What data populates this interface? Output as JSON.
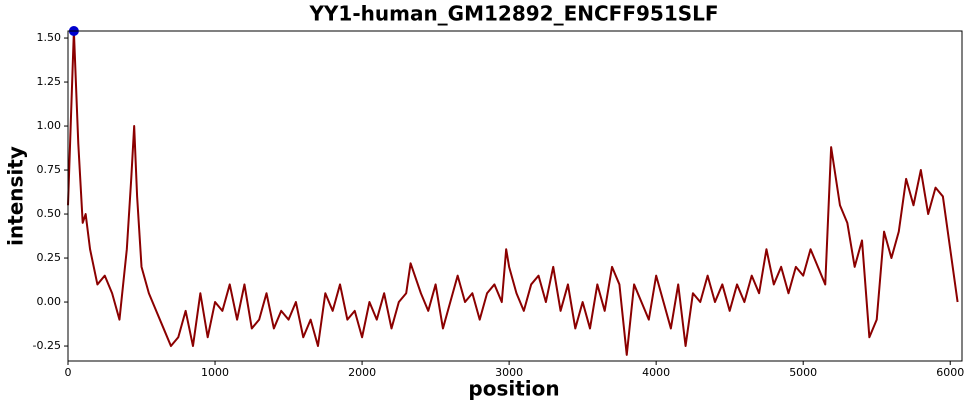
{
  "chart_data": {
    "type": "line",
    "title": "YY1-human_GM12892_ENCFF951SLF",
    "x_label": "position",
    "y_label": "intensity",
    "x": [
      0,
      40,
      70,
      100,
      120,
      150,
      200,
      250,
      300,
      350,
      400,
      430,
      450,
      470,
      500,
      550,
      600,
      650,
      700,
      750,
      800,
      850,
      900,
      950,
      1000,
      1050,
      1100,
      1150,
      1200,
      1250,
      1300,
      1350,
      1400,
      1450,
      1500,
      1550,
      1600,
      1650,
      1700,
      1750,
      1800,
      1850,
      1900,
      1950,
      2000,
      2050,
      2100,
      2150,
      2200,
      2250,
      2300,
      2330,
      2400,
      2450,
      2500,
      2550,
      2600,
      2650,
      2700,
      2750,
      2800,
      2850,
      2900,
      2950,
      2980,
      3000,
      3050,
      3100,
      3150,
      3200,
      3250,
      3300,
      3350,
      3400,
      3450,
      3500,
      3550,
      3600,
      3650,
      3700,
      3750,
      3800,
      3850,
      3900,
      3950,
      4000,
      4050,
      4100,
      4150,
      4200,
      4250,
      4300,
      4350,
      4400,
      4450,
      4500,
      4550,
      4600,
      4650,
      4700,
      4750,
      4800,
      4850,
      4900,
      4950,
      5000,
      5050,
      5100,
      5150,
      5190,
      5250,
      5300,
      5350,
      5400,
      5450,
      5500,
      5550,
      5600,
      5650,
      5700,
      5750,
      5800,
      5850,
      5900,
      5950,
      6000,
      6050
    ],
    "values": [
      0.55,
      1.54,
      0.9,
      0.45,
      0.5,
      0.3,
      0.1,
      0.15,
      0.05,
      -0.1,
      0.3,
      0.7,
      1.0,
      0.6,
      0.2,
      0.05,
      -0.05,
      -0.15,
      -0.25,
      -0.2,
      -0.05,
      -0.25,
      0.05,
      -0.2,
      0.0,
      -0.05,
      0.1,
      -0.1,
      0.1,
      -0.15,
      -0.1,
      0.05,
      -0.15,
      -0.05,
      -0.1,
      0.0,
      -0.2,
      -0.1,
      -0.25,
      0.05,
      -0.05,
      0.1,
      -0.1,
      -0.05,
      -0.2,
      0.0,
      -0.1,
      0.05,
      -0.15,
      0.0,
      0.05,
      0.22,
      0.05,
      -0.05,
      0.1,
      -0.15,
      0.0,
      0.15,
      0.0,
      0.05,
      -0.1,
      0.05,
      0.1,
      0.0,
      0.3,
      0.2,
      0.05,
      -0.05,
      0.1,
      0.15,
      0.0,
      0.2,
      -0.05,
      0.1,
      -0.15,
      0.0,
      -0.15,
      0.1,
      -0.05,
      0.2,
      0.1,
      -0.3,
      0.1,
      0.0,
      -0.1,
      0.15,
      0.0,
      -0.15,
      0.1,
      -0.25,
      0.05,
      0.0,
      0.15,
      0.0,
      0.1,
      -0.05,
      0.1,
      0.0,
      0.15,
      0.05,
      0.3,
      0.1,
      0.2,
      0.05,
      0.2,
      0.15,
      0.3,
      0.2,
      0.1,
      0.88,
      0.55,
      0.45,
      0.2,
      0.35,
      -0.2,
      -0.1,
      0.4,
      0.25,
      0.4,
      0.7,
      0.55,
      0.75,
      0.5,
      0.65,
      0.6,
      0.3,
      0.0
    ],
    "color": "#8b0000",
    "highlight": {
      "x": 40,
      "y": 1.54,
      "color": "#0000cd"
    },
    "xlim": [
      0,
      6080
    ],
    "xticks": [
      0,
      1000,
      2000,
      3000,
      4000,
      5000,
      6000
    ],
    "ylim": [
      -0.335,
      1.54
    ],
    "yticks": [
      -0.25,
      {
        "value": 0,
        "label": "0.00"
      },
      0.25,
      {
        "value": 0.5,
        "label": "0.50"
      },
      0.75,
      {
        "value": 1,
        "label": "1.00"
      },
      1.25,
      {
        "value": 1.5,
        "label": "1.50"
      }
    ],
    "grid": false
  }
}
